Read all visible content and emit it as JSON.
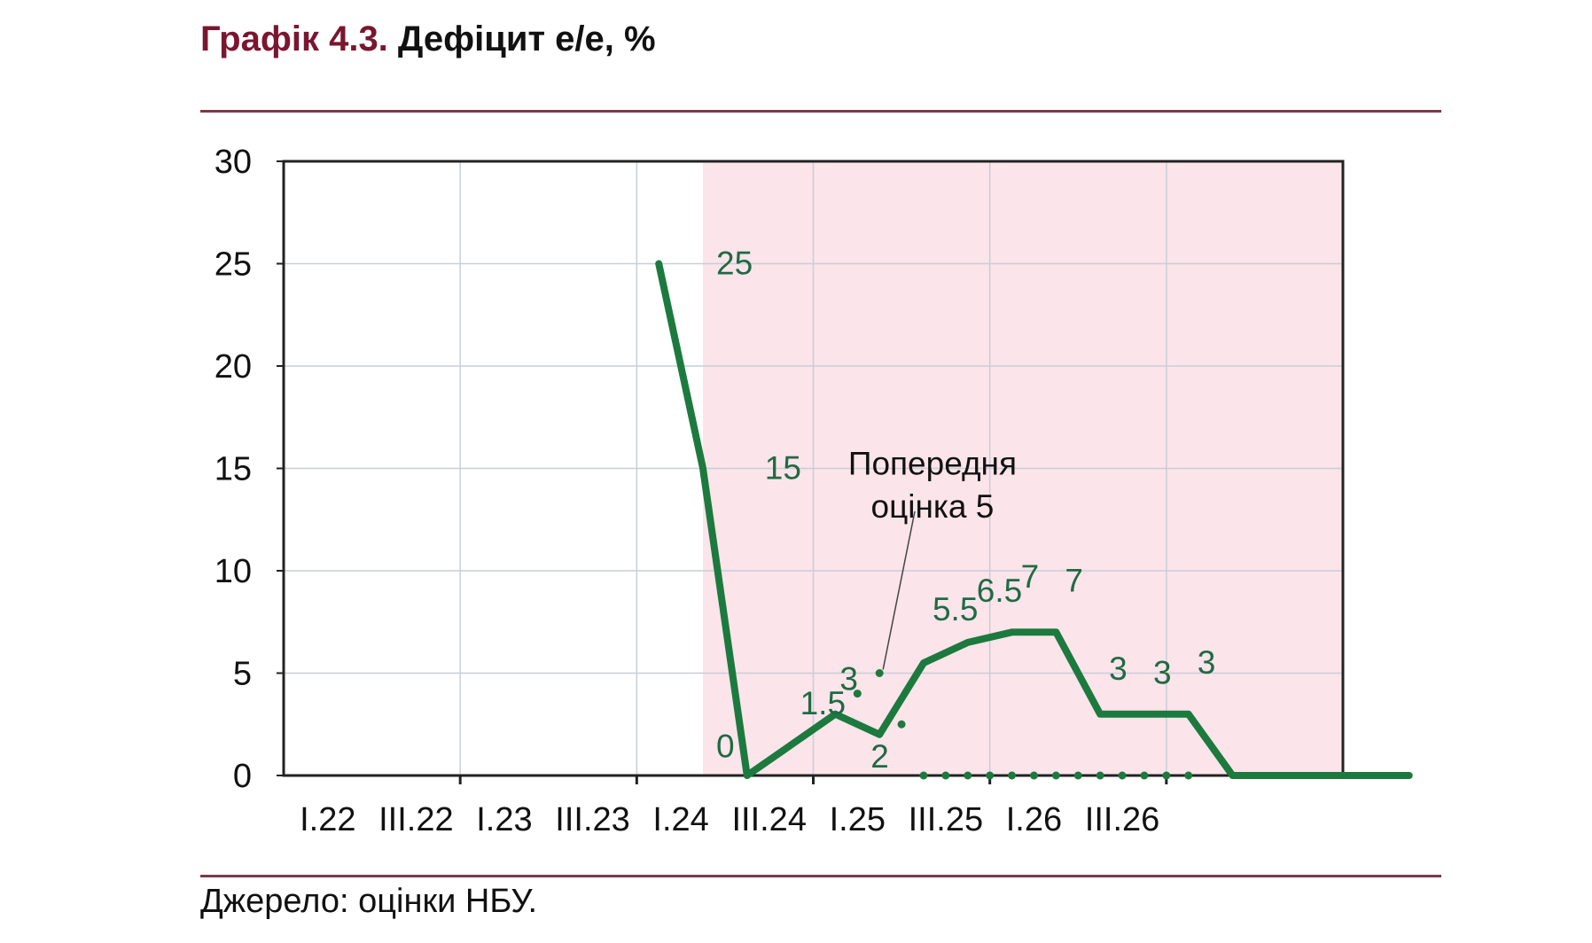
{
  "title": {
    "prefix": "Графік 4.3.",
    "main": "Дефіцит е/е, %"
  },
  "source": "Джерело: оцінки НБУ.",
  "colors": {
    "line": "#1c7a3e",
    "label": "#1f6a45",
    "forecast_shade": "#fbe4ea",
    "grid": "#c9ced6",
    "title_accent": "#7a1630"
  },
  "chart_data": {
    "type": "line",
    "title": "Дефіцит е/е, %",
    "ylim": [
      0,
      30
    ],
    "y_ticks": [
      "0",
      "5",
      "10",
      "15",
      "20",
      "25",
      "30"
    ],
    "x_ticks": [
      "I.22",
      "III.22",
      "I.23",
      "III.23",
      "I.24",
      "III.24",
      "I.25",
      "III.25",
      "I.26",
      "III.26"
    ],
    "grid": "vertical lines at each year start, horizontal lines at every y tick",
    "forecast_shading_start": 9.5,
    "series": [
      {
        "style": "solid",
        "x": [
          8.5,
          9.5,
          10.5,
          11.5,
          12.5,
          13.5,
          14.5,
          15.5,
          16.5,
          17.5,
          18.5,
          19.5,
          20.5
        ],
        "values": [
          25,
          15,
          0,
          1.5,
          3,
          2,
          5.5,
          6.5,
          7,
          7,
          3,
          3,
          3
        ],
        "extra_x": [
          21.5,
          22.5,
          23.5,
          24.5,
          25.5
        ],
        "extra_values": [
          0,
          0,
          0,
          0,
          0
        ]
      },
      {
        "style": "dotted",
        "x": [
          13.0,
          13.5,
          14.0,
          14.5,
          15.0,
          15.5,
          16.0,
          16.5,
          17.0,
          17.5,
          18.0,
          18.5,
          19.0,
          19.5,
          20.0,
          20.5
        ],
        "values": [
          4,
          5,
          2.5,
          0,
          0,
          0,
          0,
          0,
          0,
          0,
          0,
          0,
          0,
          0,
          0,
          0
        ]
      }
    ],
    "data_labels": [
      {
        "text": "25",
        "x": 9.6,
        "y": 25
      },
      {
        "text": "15",
        "x": 10.7,
        "y": 15
      },
      {
        "text": "0",
        "x": 9.6,
        "y": 1.4
      },
      {
        "text": "1.5",
        "x": 11.5,
        "y": 3.5
      },
      {
        "text": "3",
        "x": 12.4,
        "y": 4.7
      },
      {
        "text": "2",
        "x": 13.1,
        "y": 0.9
      },
      {
        "text": "5.5",
        "x": 14.5,
        "y": 8.1
      },
      {
        "text": "6.5",
        "x": 15.5,
        "y": 9
      },
      {
        "text": "7",
        "x": 16.5,
        "y": 9.7
      },
      {
        "text": "7",
        "x": 17.5,
        "y": 9.5
      },
      {
        "text": "3",
        "x": 18.5,
        "y": 5.2
      },
      {
        "text": "3",
        "x": 19.5,
        "y": 5
      },
      {
        "text": "3",
        "x": 20.5,
        "y": 5.5
      }
    ],
    "annotation": {
      "lines": [
        "Попередня",
        "оцінка 5"
      ],
      "target_x": 13.5,
      "target_y": 5
    }
  }
}
